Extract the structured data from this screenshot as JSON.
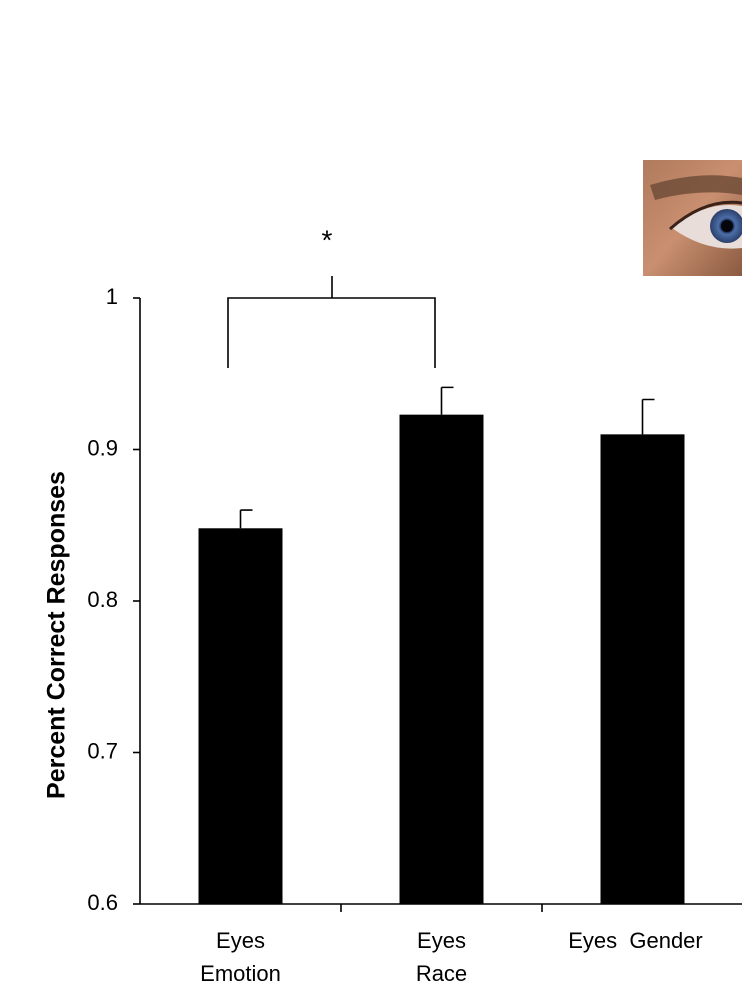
{
  "chart_data": {
    "type": "bar",
    "ylabel": "Percent Correct Responses",
    "categories": [
      [
        "Eyes",
        "Emotion"
      ],
      [
        "Eyes",
        "Race"
      ],
      [
        "Eyes  Gender"
      ]
    ],
    "values": [
      0.848,
      0.923,
      0.91
    ],
    "errors": [
      0.012,
      0.018,
      0.023
    ],
    "color": "#000000",
    "ylim": [
      0.6,
      1
    ],
    "yticks": [
      0.6,
      0.7,
      0.8,
      0.9,
      1
    ],
    "annotation": "*"
  }
}
